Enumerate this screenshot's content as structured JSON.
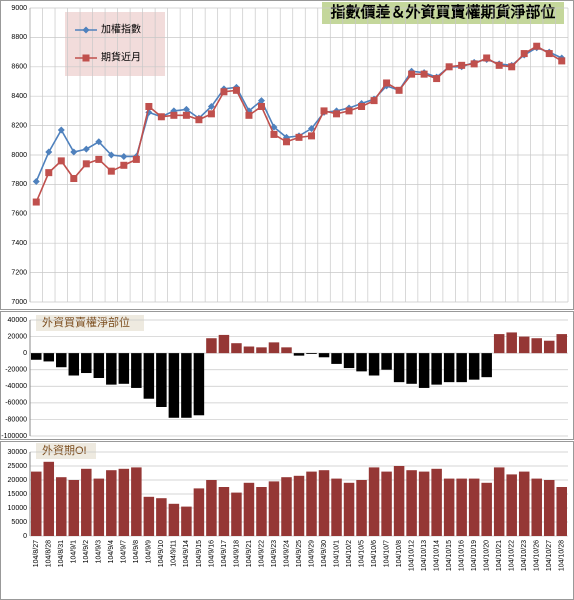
{
  "chart_data": [
    {
      "type": "line",
      "title": "指數價差＆外資買賣權期貨淨部位",
      "legend": "upper left",
      "grid": true,
      "ylim": [
        7000,
        9000
      ],
      "yticks": [
        7000,
        7200,
        7400,
        7600,
        7800,
        8000,
        8200,
        8400,
        8600,
        8800,
        9000
      ],
      "series": [
        {
          "name": "加權指數",
          "color": "#4f81bd",
          "marker": "diamond",
          "values": [
            7820,
            8020,
            8170,
            8020,
            8040,
            8090,
            8000,
            7990,
            7990,
            8290,
            8260,
            8300,
            8310,
            8250,
            8330,
            8450,
            8460,
            8300,
            8370,
            8190,
            8120,
            8130,
            8180,
            8290,
            8300,
            8320,
            8350,
            8380,
            8470,
            8440,
            8570,
            8560,
            8530,
            8600,
            8600,
            8630,
            8650,
            8620,
            8610,
            8680,
            8730,
            8700,
            8660
          ]
        },
        {
          "name": "期貨近月",
          "color": "#c0504d",
          "marker": "square",
          "values": [
            7680,
            7880,
            7960,
            7840,
            7940,
            7970,
            7890,
            7930,
            7970,
            8330,
            8260,
            8270,
            8270,
            8240,
            8280,
            8430,
            8440,
            8270,
            8330,
            8140,
            8090,
            8120,
            8130,
            8300,
            8280,
            8300,
            8330,
            8370,
            8490,
            8440,
            8550,
            8550,
            8520,
            8600,
            8610,
            8620,
            8660,
            8610,
            8600,
            8690,
            8740,
            8690,
            8640
          ]
        }
      ]
    },
    {
      "type": "bar",
      "title": "外資買賣權淨部位",
      "positive_color": "#953735",
      "negative_color": "#000000",
      "ylim": [
        -100000,
        40000
      ],
      "yticks": [
        {
          "value": -100000,
          "label": "-100000"
        },
        -80000,
        -60000,
        -40000,
        -20000,
        0,
        20000,
        40000
      ],
      "values": [
        -8000,
        -10000,
        -17000,
        -27000,
        -24000,
        -30000,
        -38000,
        -37000,
        -42000,
        -55000,
        -65000,
        -78000,
        -78000,
        -75000,
        18000,
        22000,
        12000,
        8000,
        7000,
        13000,
        7000,
        -3000,
        -1000,
        -5000,
        -13000,
        -18000,
        -22000,
        -27000,
        -20000,
        -35000,
        -37000,
        -42000,
        -38000,
        -35000,
        -35000,
        -32000,
        -29000,
        23000,
        25000,
        20000,
        18000,
        15000,
        23000
      ]
    },
    {
      "type": "bar",
      "title": "外資期OI",
      "color": "#953735",
      "ylim": [
        0,
        30000
      ],
      "yticks": [
        0,
        5000,
        10000,
        15000,
        20000,
        25000,
        30000
      ],
      "categories": [
        "104/8/27",
        "104/8/28",
        "104/8/31",
        "104/9/1",
        "104/9/2",
        "104/9/3",
        "104/9/4",
        "104/9/7",
        "104/9/8",
        "104/9/9",
        "104/9/10",
        "104/9/11",
        "104/9/14",
        "104/9/15",
        "104/9/16",
        "104/9/17",
        "104/9/18",
        "104/9/21",
        "104/9/22",
        "104/9/23",
        "104/9/24",
        "104/9/25",
        "104/9/29",
        "104/9/30",
        "104/10/1",
        "104/10/2",
        "104/10/5",
        "104/10/6",
        "104/10/7",
        "104/10/8",
        "104/10/12",
        "104/10/13",
        "104/10/14",
        "104/10/15",
        "104/10/16",
        "104/10/19",
        "104/10/20",
        "104/10/21",
        "104/10/22",
        "104/10/23",
        "104/10/26",
        "104/10/27",
        "104/10/28"
      ],
      "values": [
        23000,
        26500,
        21000,
        20000,
        24000,
        20500,
        23500,
        24000,
        24500,
        14000,
        13500,
        11500,
        10500,
        17000,
        20000,
        17500,
        15500,
        19000,
        17500,
        19500,
        21000,
        21500,
        23000,
        23500,
        20500,
        19000,
        20000,
        24500,
        23000,
        25000,
        23500,
        23000,
        24000,
        20500,
        20500,
        20500,
        19000,
        24500,
        22000,
        23000,
        20500,
        20000,
        17500
      ]
    }
  ]
}
